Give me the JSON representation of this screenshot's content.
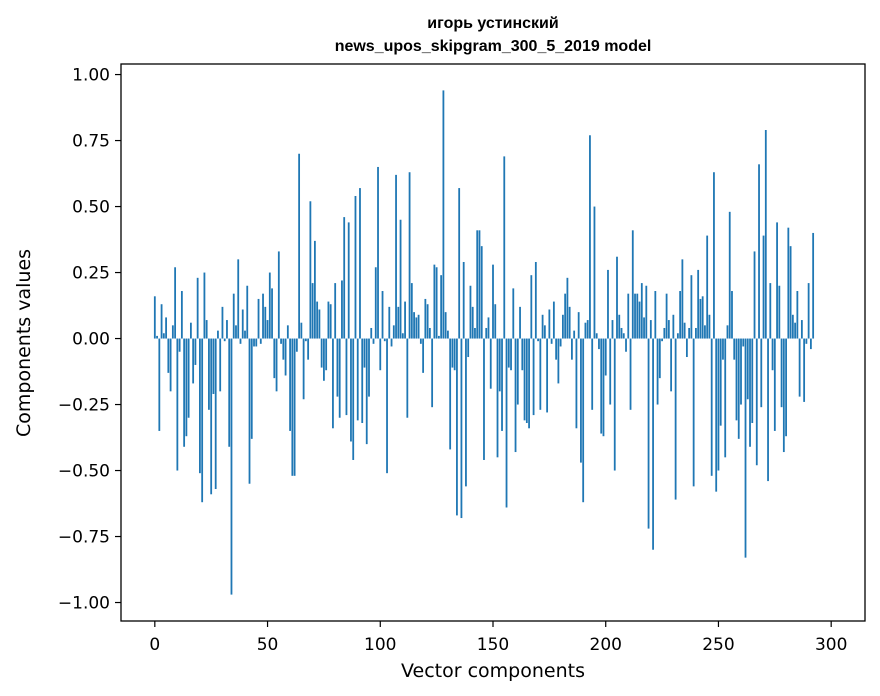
{
  "chart_data": {
    "type": "bar",
    "title": "игорь устинский",
    "subtitle": "news_upos_skipgram_300_5_2019 model",
    "xlabel": "Vector components",
    "ylabel": "Components values",
    "xlim": [
      -15,
      315
    ],
    "ylim": [
      -1.07,
      1.04
    ],
    "xticks": [
      0,
      50,
      100,
      150,
      200,
      250,
      300
    ],
    "yticks": [
      1.0,
      0.75,
      0.5,
      0.25,
      0.0,
      -0.25,
      -0.5,
      -0.75,
      -1.0
    ],
    "ytick_labels": [
      "1.00",
      "0.75",
      "0.50",
      "0.25",
      "0.00",
      "−0.25",
      "−0.50",
      "−0.75",
      "−1.00"
    ],
    "bar_color": "#1f77b4",
    "values": [
      0.16,
      0.01,
      -0.35,
      0.13,
      0.02,
      0.08,
      -0.13,
      -0.2,
      0.05,
      0.27,
      -0.5,
      -0.05,
      0.18,
      -0.41,
      -0.37,
      -0.3,
      0.06,
      -0.17,
      -0.1,
      0.23,
      -0.51,
      -0.62,
      0.25,
      0.07,
      -0.27,
      -0.59,
      -0.21,
      -0.57,
      0.03,
      -0.2,
      0.12,
      -0.01,
      0.07,
      -0.41,
      -0.97,
      0.17,
      0.05,
      0.3,
      -0.02,
      0.11,
      0.03,
      0.2,
      -0.55,
      -0.38,
      -0.03,
      -0.03,
      0.15,
      -0.02,
      0.17,
      0.12,
      0.07,
      0.25,
      0.19,
      -0.15,
      -0.2,
      0.33,
      -0.02,
      -0.08,
      -0.14,
      0.05,
      -0.35,
      -0.52,
      -0.52,
      -0.05,
      0.7,
      0.06,
      -0.23,
      -0.01,
      -0.08,
      0.52,
      0.21,
      0.37,
      0.14,
      0.11,
      -0.11,
      -0.16,
      -0.12,
      0.14,
      0.13,
      -0.34,
      0.21,
      -0.22,
      -0.3,
      0.22,
      0.46,
      -0.29,
      0.44,
      -0.39,
      -0.46,
      0.54,
      -0.31,
      0.57,
      -0.32,
      -0.11,
      -0.4,
      -0.22,
      0.04,
      -0.02,
      0.27,
      0.65,
      -0.12,
      0.18,
      -0.01,
      -0.51,
      0.12,
      -0.03,
      0.05,
      0.62,
      0.12,
      0.45,
      0.02,
      0.14,
      -0.3,
      0.63,
      0.21,
      0.1,
      0.08,
      0.09,
      -0.02,
      -0.13,
      0.15,
      0.13,
      0.04,
      -0.26,
      0.28,
      0.27,
      0.01,
      0.24,
      0.94,
      0.1,
      0.03,
      -0.42,
      -0.11,
      -0.12,
      -0.67,
      0.57,
      -0.68,
      0.29,
      -0.56,
      -0.07,
      0.2,
      0.12,
      0.04,
      0.41,
      0.41,
      0.35,
      -0.46,
      0.04,
      0.08,
      -0.19,
      0.28,
      0.13,
      -0.45,
      -0.2,
      -0.35,
      0.69,
      -0.64,
      -0.11,
      -0.12,
      0.19,
      -0.43,
      -0.25,
      0.12,
      -0.12,
      -0.31,
      -0.32,
      -0.34,
      0.24,
      -0.29,
      0.29,
      -0.01,
      -0.27,
      0.09,
      0.05,
      -0.28,
      0.11,
      -0.02,
      0.14,
      -0.08,
      -0.17,
      -0.03,
      0.09,
      0.17,
      0.23,
      0.12,
      -0.08,
      0.03,
      -0.34,
      0.1,
      -0.47,
      -0.62,
      0.06,
      0.07,
      0.77,
      -0.27,
      0.5,
      0.02,
      -0.04,
      -0.36,
      -0.37,
      -0.14,
      0.26,
      -0.25,
      0.07,
      -0.5,
      0.31,
      0.09,
      0.04,
      0.02,
      -0.05,
      0.17,
      -0.27,
      0.41,
      0.17,
      0.17,
      0.14,
      0.21,
      0.08,
      0.2,
      -0.72,
      0.07,
      -0.8,
      0.18,
      -0.25,
      -0.15,
      -0.01,
      0.04,
      0.17,
      0.07,
      -0.2,
      0.09,
      -0.61,
      0.02,
      0.18,
      0.3,
      0.06,
      -0.07,
      0.04,
      0.24,
      -0.56,
      0.04,
      0.26,
      0.15,
      0.16,
      0.05,
      0.39,
      0.09,
      -0.52,
      0.63,
      -0.58,
      -0.5,
      -0.33,
      -0.08,
      -0.45,
      0.05,
      0.48,
      0.18,
      -0.08,
      -0.31,
      -0.38,
      -0.25,
      -0.03,
      -0.83,
      -0.23,
      -0.41,
      -0.32,
      0.33,
      -0.48,
      0.66,
      -0.26,
      0.39,
      0.79,
      -0.54,
      0.21,
      -0.12,
      -0.35,
      0.44,
      0.2,
      -0.26,
      -0.43,
      -0.37,
      0.42,
      0.35,
      0.09,
      0.06,
      0.18,
      -0.22,
      0.07,
      -0.24,
      -0.02,
      0.21,
      -0.04,
      0.4
    ]
  }
}
